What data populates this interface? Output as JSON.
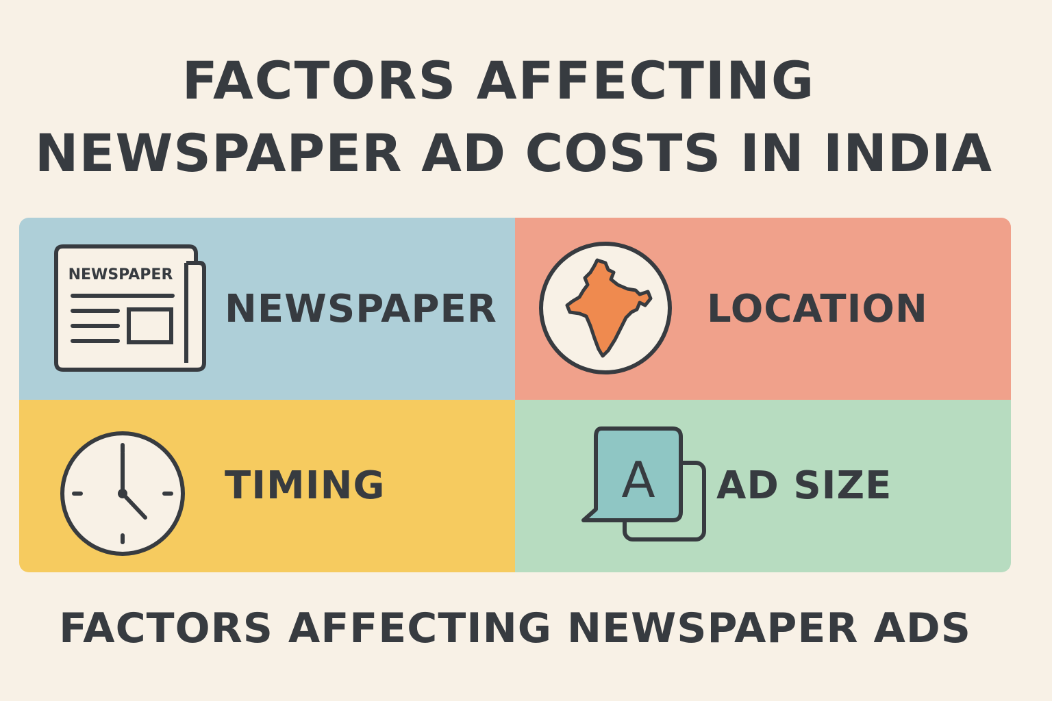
{
  "title": {
    "line1": "FACTORS AFFECTING",
    "line2": "NEWSPAPER AD COSTS IN INDIA"
  },
  "factors": [
    {
      "label": "NEWSPAPER",
      "icon": "newspaper-icon",
      "color": "#aecfd8",
      "icon_text": "NEWSPAPER"
    },
    {
      "label": "LOCATION",
      "icon": "india-map-icon",
      "color": "#f0a18b"
    },
    {
      "label": "TIMING",
      "icon": "clock-icon",
      "color": "#f6cb5f"
    },
    {
      "label": "AD SIZE",
      "icon": "ad-size-icon",
      "color": "#b7dcc0",
      "icon_text": "A"
    }
  ],
  "footer": "FACTORS AFFECTING NEWSPAPER ADS",
  "colors": {
    "background": "#f8f1e6",
    "text": "#373b40",
    "map_fill": "#ef8a4f",
    "ad_tile": "#8fc6c4"
  }
}
